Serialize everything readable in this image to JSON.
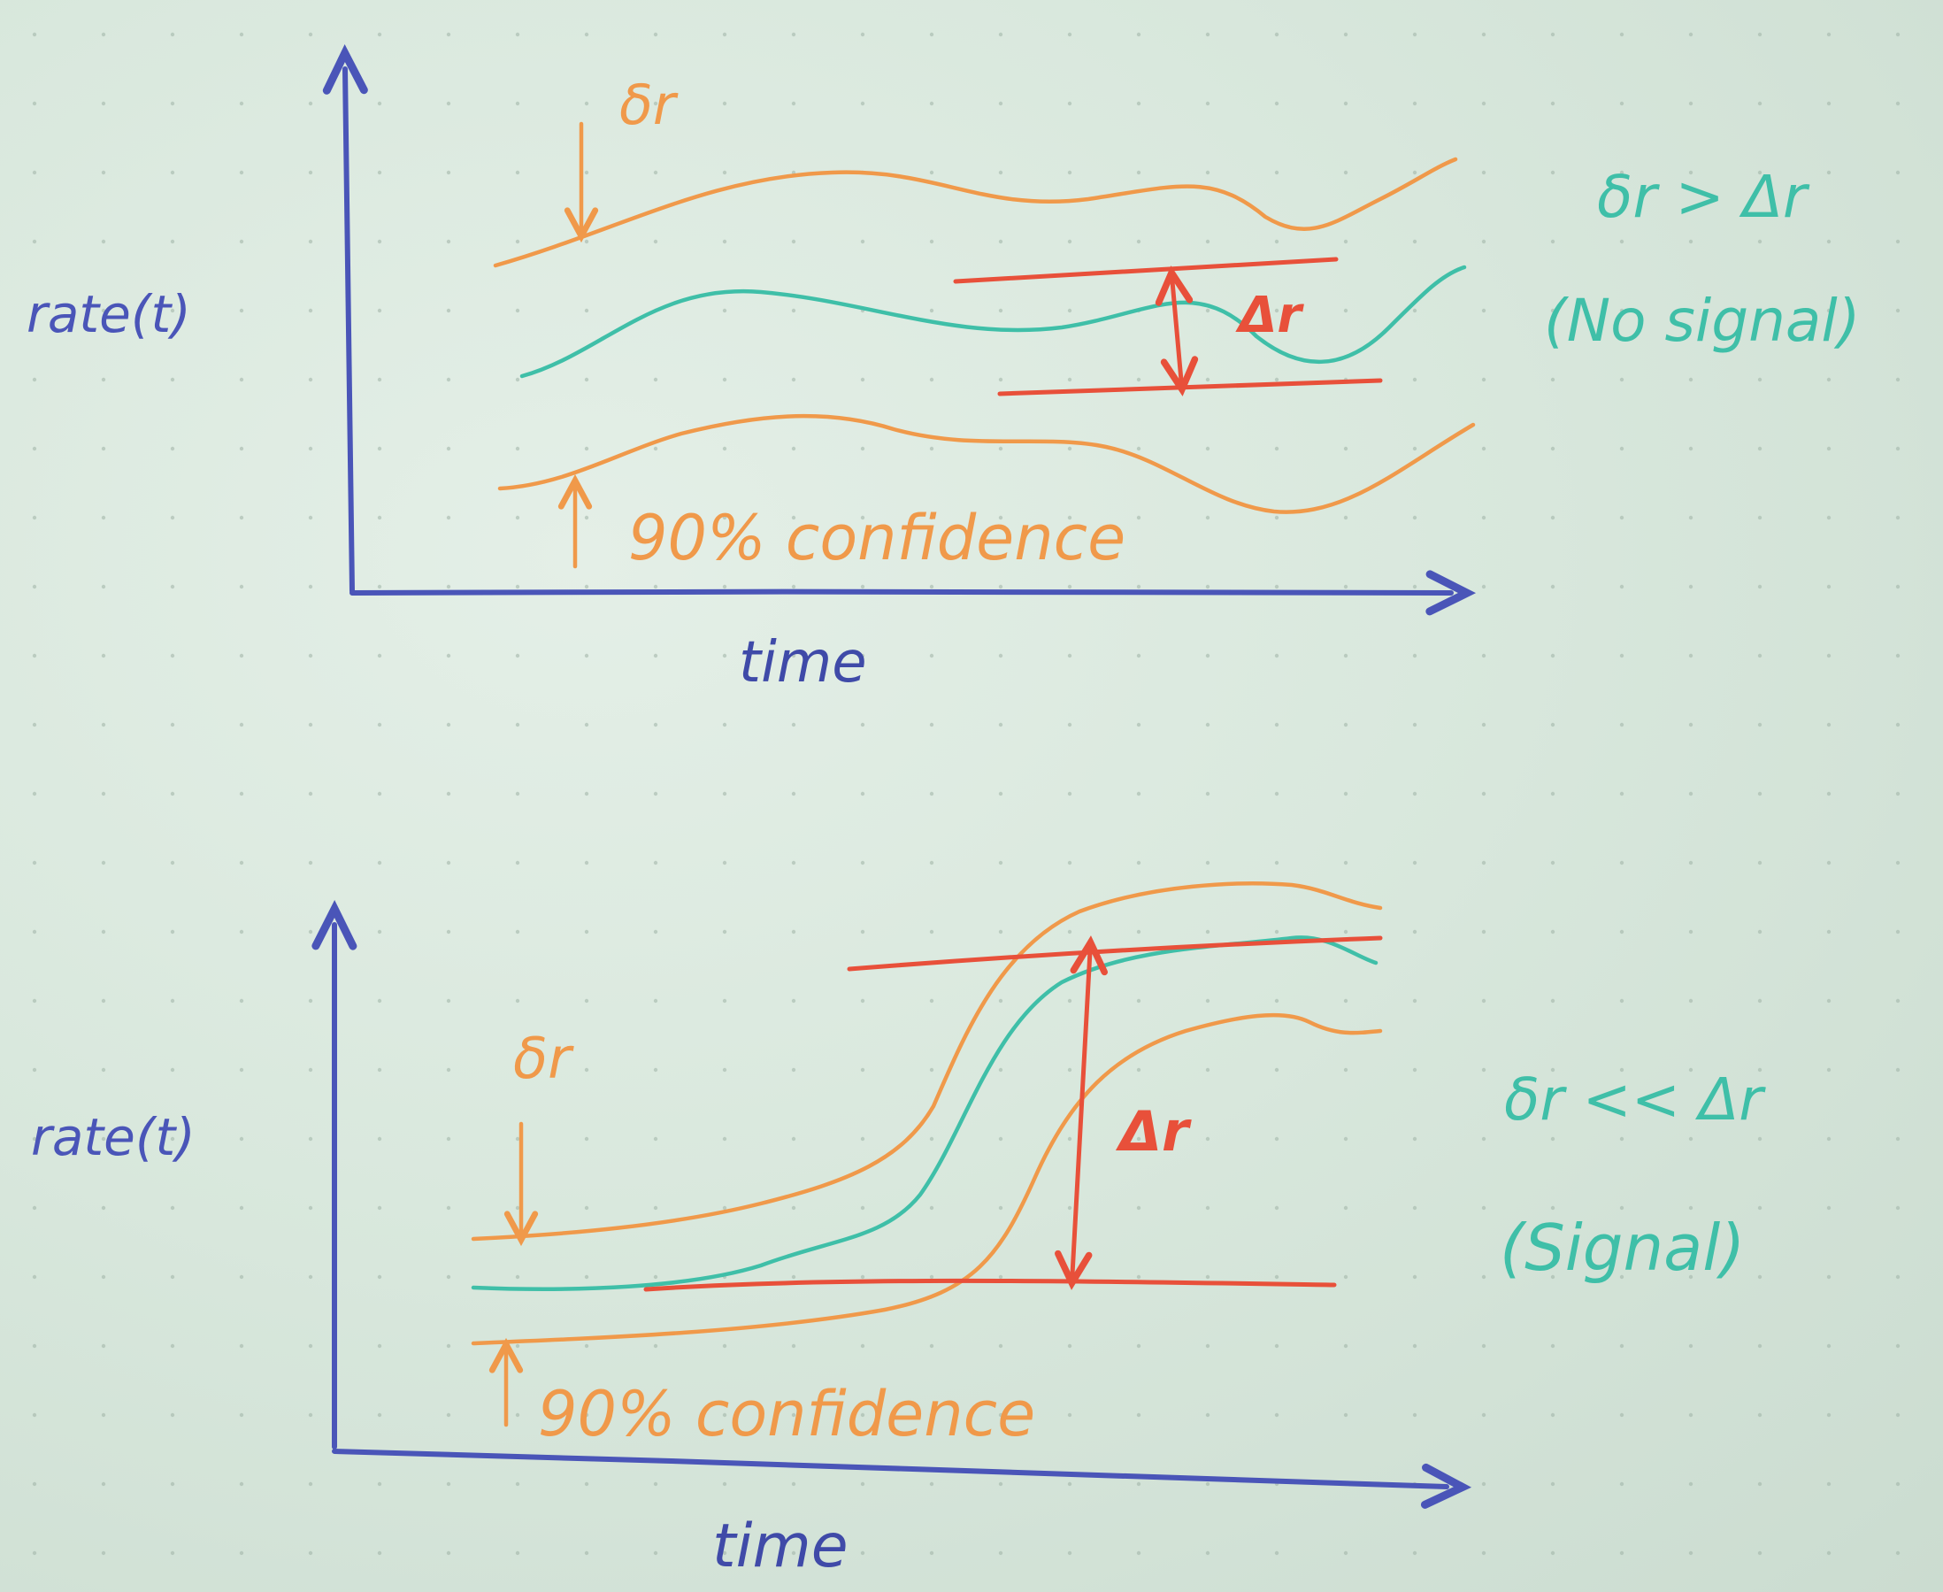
{
  "colors": {
    "paper": "#d6e5da",
    "axis_blue": "#4a55b8",
    "orange": "#f0994a",
    "teal": "#3fbfa8",
    "red": "#e8503a"
  },
  "top_panel": {
    "y_label": "rate(t)",
    "x_label": "time",
    "delta_small_label": "δr",
    "delta_big_label": "Δr",
    "confidence_label": "90% confidence",
    "condition": "δr > Δr",
    "verdict": "(No signal)"
  },
  "bottom_panel": {
    "y_label": "rate(t)",
    "x_label": "time",
    "delta_small_label": "δr",
    "delta_big_label": "Δr",
    "confidence_label": "90% confidence",
    "condition": "δr << Δr",
    "verdict": "(Signal)"
  }
}
